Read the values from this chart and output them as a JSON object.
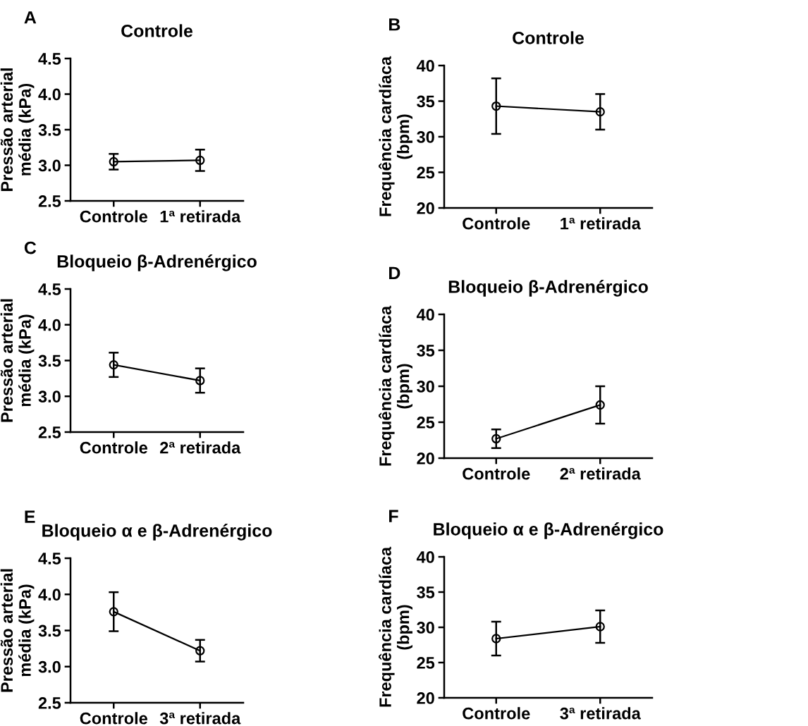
{
  "chart_data": [
    {
      "type": "line",
      "title": "Controle",
      "ylabel": "Pressão arterial\nmédia (kPa)",
      "categories": [
        "Controle",
        "1ª retirada"
      ],
      "values": [
        3.05,
        3.07
      ],
      "errors": [
        0.11,
        0.15
      ],
      "color": "#000000",
      "marker": "circle",
      "ylim": [
        2.5,
        4.5
      ],
      "yticks": [
        {
          "value": 2.5,
          "label": "2.5"
        },
        {
          "value": 3.0,
          "label": "3.0"
        },
        3.5,
        {
          "value": 4.0,
          "label": "4.0"
        },
        4.5
      ],
      "grid": false,
      "annotations": [
        "A"
      ]
    },
    {
      "type": "line",
      "title": "Controle",
      "ylabel": "Frequência cardíaca\n(bpm)",
      "categories": [
        "Controle",
        "1ª retirada"
      ],
      "values": [
        34.3,
        33.5
      ],
      "errors": [
        3.9,
        2.5
      ],
      "color": "#000000",
      "marker": "circle",
      "ylim": [
        20,
        40
      ],
      "yticks": [
        20,
        25,
        30,
        35,
        40
      ],
      "grid": false,
      "annotations": [
        "B"
      ]
    },
    {
      "type": "line",
      "title": "Bloqueio β-Adrenérgico",
      "ylabel": "Pressão arterial\nmédia (kPa)",
      "categories": [
        "Controle",
        "2ª retirada"
      ],
      "values": [
        3.44,
        3.22
      ],
      "errors": [
        0.17,
        0.17
      ],
      "color": "#000000",
      "marker": "circle",
      "ylim": [
        2.5,
        4.5
      ],
      "yticks": [
        {
          "value": 2.5,
          "label": "2.5"
        },
        {
          "value": 3.0,
          "label": "3.0"
        },
        3.5,
        {
          "value": 4.0,
          "label": "4.0"
        },
        4.5
      ],
      "grid": false,
      "annotations": [
        "C"
      ]
    },
    {
      "type": "line",
      "title": "Bloqueio β-Adrenérgico",
      "ylabel": "Frequência cardíaca\n(bpm)",
      "categories": [
        "Controle",
        "2ª retirada"
      ],
      "values": [
        22.7,
        27.4
      ],
      "errors": [
        1.3,
        2.6
      ],
      "color": "#000000",
      "marker": "circle",
      "ylim": [
        20,
        40
      ],
      "yticks": [
        20,
        25,
        30,
        35,
        40
      ],
      "grid": false,
      "annotations": [
        "D"
      ]
    },
    {
      "type": "line",
      "title": "Bloqueio α e β-Adrenérgico",
      "ylabel": "Pressão arterial\nmédia (kPa)",
      "categories": [
        "Controle",
        "3ª retirada"
      ],
      "values": [
        3.76,
        3.22
      ],
      "errors": [
        0.27,
        0.15
      ],
      "color": "#000000",
      "marker": "circle",
      "ylim": [
        2.5,
        4.5
      ],
      "yticks": [
        {
          "value": 2.5,
          "label": "2.5"
        },
        {
          "value": 3.0,
          "label": "3.0"
        },
        3.5,
        {
          "value": 4.0,
          "label": "4.0"
        },
        4.5
      ],
      "grid": false,
      "annotations": [
        "E"
      ]
    },
    {
      "type": "line",
      "title": "Bloqueio α e β-Adrenérgico",
      "ylabel": "Frequência cardíaca\n(bpm)",
      "categories": [
        "Controle",
        "3ª retirada"
      ],
      "values": [
        28.4,
        30.1
      ],
      "errors": [
        2.4,
        2.3
      ],
      "color": "#000000",
      "marker": "circle",
      "ylim": [
        20,
        40
      ],
      "yticks": [
        20,
        25,
        30,
        35,
        40
      ],
      "grid": false,
      "annotations": [
        "F"
      ]
    }
  ]
}
